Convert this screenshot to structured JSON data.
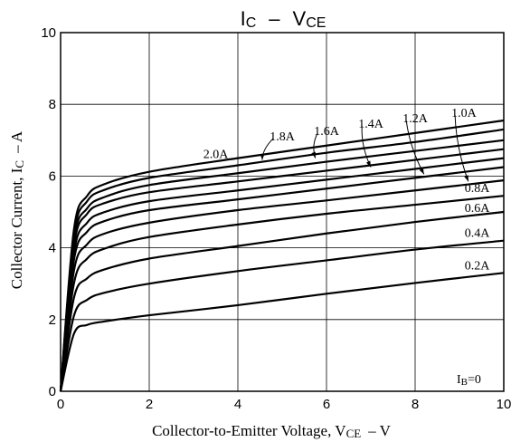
{
  "chart_data": {
    "type": "line",
    "title_main": "I",
    "title_sub1": "C",
    "title_dash": "–",
    "title_v": "V",
    "title_sub2": "CE",
    "xlabel_main": "Collector-to-Emitter Voltage, V",
    "xlabel_sub": "CE",
    "xlabel_tail": "–   V",
    "ylabel_main": "Collector Current, I",
    "ylabel_sub": "C",
    "ylabel_tail": "–   A",
    "xlim": [
      0,
      10
    ],
    "ylim": [
      0,
      10
    ],
    "x_ticks": [
      "0",
      "2",
      "4",
      "6",
      "8",
      "10"
    ],
    "y_ticks": [
      "0",
      "2",
      "4",
      "6",
      "8",
      "10"
    ],
    "grid": true,
    "ib0_main": "I",
    "ib0_sub": "B",
    "ib0_tail": "=0",
    "series": [
      {
        "name": "0.2A",
        "values": [
          [
            0,
            0
          ],
          [
            0.3,
            1.6
          ],
          [
            0.6,
            1.85
          ],
          [
            1,
            1.95
          ],
          [
            2,
            2.12
          ],
          [
            4,
            2.4
          ],
          [
            6,
            2.72
          ],
          [
            8,
            3.02
          ],
          [
            10,
            3.3
          ]
        ]
      },
      {
        "name": "0.4A",
        "values": [
          [
            0,
            0
          ],
          [
            0.3,
            2.1
          ],
          [
            0.6,
            2.55
          ],
          [
            1,
            2.75
          ],
          [
            2,
            3.0
          ],
          [
            4,
            3.35
          ],
          [
            6,
            3.65
          ],
          [
            8,
            3.95
          ],
          [
            10,
            4.2
          ]
        ]
      },
      {
        "name": "0.6A",
        "values": [
          [
            0,
            0
          ],
          [
            0.3,
            2.6
          ],
          [
            0.6,
            3.15
          ],
          [
            1,
            3.4
          ],
          [
            2,
            3.7
          ],
          [
            4,
            4.05
          ],
          [
            6,
            4.4
          ],
          [
            8,
            4.72
          ],
          [
            10,
            5.0
          ]
        ]
      },
      {
        "name": "0.8A",
        "values": [
          [
            0,
            0
          ],
          [
            0.3,
            3.0
          ],
          [
            0.6,
            3.7
          ],
          [
            1,
            3.98
          ],
          [
            2,
            4.3
          ],
          [
            4,
            4.65
          ],
          [
            6,
            4.95
          ],
          [
            8,
            5.2
          ],
          [
            10,
            5.45
          ]
        ]
      },
      {
        "name": "1.0A",
        "values": [
          [
            0,
            0
          ],
          [
            0.3,
            3.35
          ],
          [
            0.6,
            4.1
          ],
          [
            1,
            4.4
          ],
          [
            2,
            4.7
          ],
          [
            4,
            5.05
          ],
          [
            6,
            5.32
          ],
          [
            8,
            5.6
          ],
          [
            10,
            5.88
          ]
        ]
      },
      {
        "name": "1.2A",
        "values": [
          [
            0,
            0
          ],
          [
            0.3,
            3.65
          ],
          [
            0.6,
            4.45
          ],
          [
            1,
            4.75
          ],
          [
            2,
            5.05
          ],
          [
            4,
            5.35
          ],
          [
            6,
            5.65
          ],
          [
            8,
            5.95
          ],
          [
            10,
            6.25
          ]
        ]
      },
      {
        "name": "1.4A",
        "values": [
          [
            0,
            0
          ],
          [
            0.3,
            3.85
          ],
          [
            0.6,
            4.7
          ],
          [
            1,
            5.0
          ],
          [
            2,
            5.3
          ],
          [
            4,
            5.6
          ],
          [
            6,
            5.9
          ],
          [
            8,
            6.2
          ],
          [
            10,
            6.5
          ]
        ]
      },
      {
        "name": "1.6A",
        "values": [
          [
            0,
            0
          ],
          [
            0.3,
            4.05
          ],
          [
            0.6,
            4.95
          ],
          [
            1,
            5.25
          ],
          [
            2,
            5.55
          ],
          [
            4,
            5.85
          ],
          [
            6,
            6.15
          ],
          [
            8,
            6.45
          ],
          [
            10,
            6.75
          ]
        ]
      },
      {
        "name": "1.8A",
        "values": [
          [
            0,
            0
          ],
          [
            0.3,
            4.2
          ],
          [
            0.6,
            5.1
          ],
          [
            1,
            5.42
          ],
          [
            2,
            5.75
          ],
          [
            4,
            6.08
          ],
          [
            6,
            6.4
          ],
          [
            8,
            6.7
          ],
          [
            10,
            7.0
          ]
        ]
      },
      {
        "name": "2.0A",
        "values": [
          [
            0,
            0
          ],
          [
            0.3,
            4.35
          ],
          [
            0.6,
            5.3
          ],
          [
            1,
            5.62
          ],
          [
            2,
            5.95
          ],
          [
            4,
            6.3
          ],
          [
            6,
            6.65
          ],
          [
            8,
            6.95
          ],
          [
            10,
            7.3
          ]
        ]
      },
      {
        "name": "",
        "values": [
          [
            0,
            0
          ],
          [
            0.3,
            4.5
          ],
          [
            0.6,
            5.45
          ],
          [
            1,
            5.78
          ],
          [
            2,
            6.12
          ],
          [
            4,
            6.5
          ],
          [
            6,
            6.85
          ],
          [
            8,
            7.2
          ],
          [
            10,
            7.55
          ]
        ]
      }
    ],
    "labels": [
      {
        "text": "2.0A",
        "x": 3.5,
        "y": 6.5
      },
      {
        "text": "1.8A",
        "x": 5.0,
        "y": 7.0
      },
      {
        "text": "1.6A",
        "x": 6.0,
        "y": 7.15
      },
      {
        "text": "1.4A",
        "x": 7.0,
        "y": 7.35
      },
      {
        "text": "1.2A",
        "x": 8.0,
        "y": 7.5
      },
      {
        "text": "1.0A",
        "x": 9.1,
        "y": 7.65
      },
      {
        "text": "0.8A",
        "x": 9.4,
        "y": 5.55
      },
      {
        "text": "0.6A",
        "x": 9.4,
        "y": 5.0
      },
      {
        "text": "0.4A",
        "x": 9.4,
        "y": 4.3
      },
      {
        "text": "0.2A",
        "x": 9.4,
        "y": 3.4
      }
    ],
    "arrows": [
      {
        "from": [
          4.8,
          7.05
        ],
        "to": [
          4.55,
          6.45
        ]
      },
      {
        "from": [
          5.8,
          7.2
        ],
        "to": [
          5.75,
          6.5
        ]
      },
      {
        "from": [
          6.8,
          7.4
        ],
        "to": [
          7.0,
          6.25
        ]
      },
      {
        "from": [
          7.8,
          7.55
        ],
        "to": [
          8.2,
          6.05
        ]
      },
      {
        "from": [
          8.9,
          7.7
        ],
        "to": [
          9.2,
          5.85
        ]
      }
    ]
  }
}
